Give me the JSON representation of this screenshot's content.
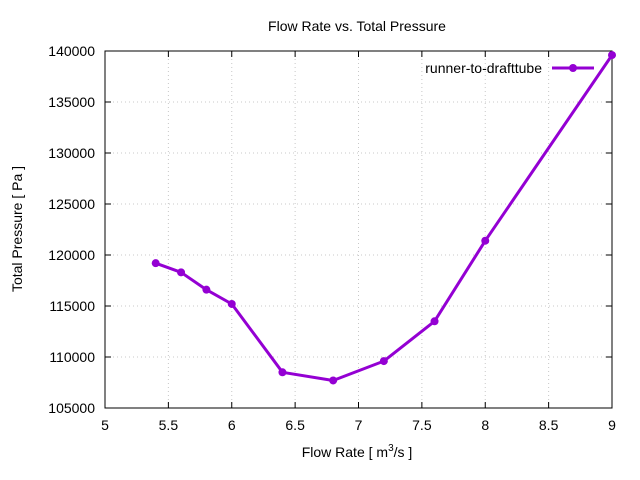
{
  "chart_data": {
    "type": "line",
    "title": "Flow Rate vs. Total Pressure",
    "xlabel_prefix": "Flow Rate [ m",
    "xlabel_sup": "3",
    "xlabel_suffix": "/s ]",
    "ylabel": "Total Pressure [ Pa ]",
    "xlim": [
      5,
      9
    ],
    "ylim": [
      105000,
      140000
    ],
    "xticks": [
      "5",
      "5.5",
      "6",
      "6.5",
      "7",
      "7.5",
      "8",
      "8.5",
      "9"
    ],
    "yticks": [
      "105000",
      "110000",
      "115000",
      "120000",
      "125000",
      "130000",
      "135000",
      "140000"
    ],
    "grid": true,
    "legend_position": "top-right",
    "series": [
      {
        "name": "runner-to-drafttube",
        "color": "#9400d3",
        "x": [
          5.4,
          5.6,
          5.8,
          6.0,
          6.4,
          6.8,
          7.2,
          7.6,
          8.0,
          9.0
        ],
        "y": [
          119200,
          118300,
          116600,
          115200,
          108500,
          107700,
          109600,
          113500,
          121400,
          139600
        ]
      }
    ]
  }
}
